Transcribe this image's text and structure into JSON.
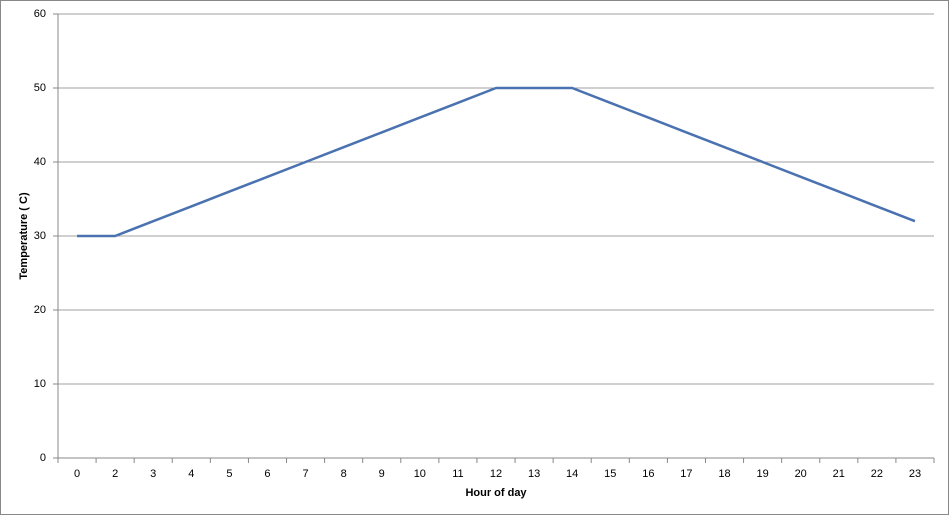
{
  "chart_data": {
    "type": "line",
    "x_label": "Hour of day",
    "y_label": "Temperature ( C)",
    "categories": [
      "0",
      "2",
      "3",
      "4",
      "5",
      "6",
      "7",
      "8",
      "9",
      "10",
      "11",
      "12",
      "13",
      "14",
      "15",
      "16",
      "17",
      "18",
      "19",
      "20",
      "21",
      "22",
      "23"
    ],
    "series": [
      {
        "name": "Temperature",
        "color": "#4a72b0",
        "values": [
          30,
          30,
          32,
          34,
          36,
          38,
          40,
          42,
          44,
          46,
          48,
          50,
          50,
          50,
          48,
          46,
          44,
          42,
          40,
          38,
          36,
          34,
          32
        ]
      }
    ],
    "ylim": [
      0,
      60
    ],
    "yticks": [
      0,
      10,
      20,
      30,
      40,
      50,
      60
    ],
    "grid": true
  }
}
